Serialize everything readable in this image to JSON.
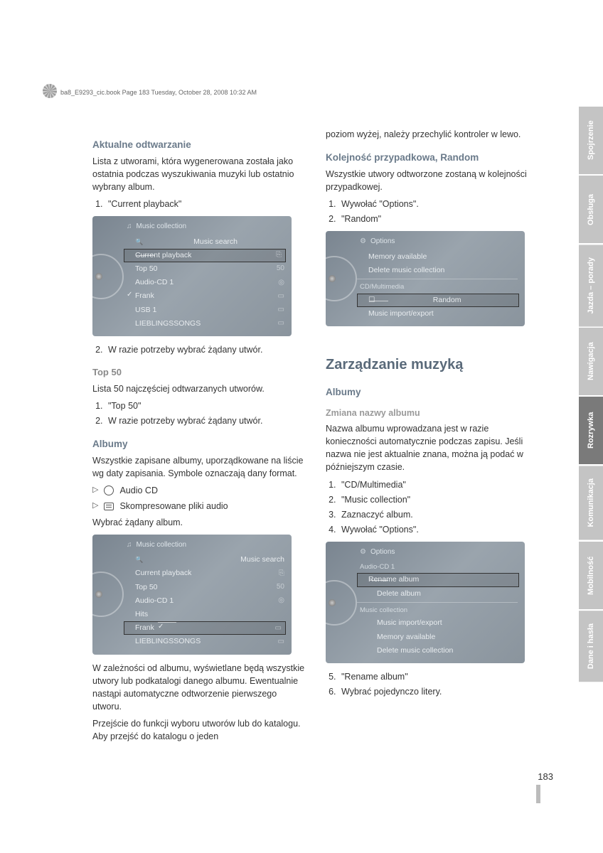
{
  "header": {
    "running_head": "ba8_E9293_cic.book  Page 183  Tuesday, October 28, 2008  10:32 AM"
  },
  "left_column": {
    "sec1": {
      "title": "Aktualne odtwarzanie",
      "body": "Lista z utworami, która wygenerowana została jako ostatnia podczas wyszukiwania muzyki lub ostatnio wybrany album.",
      "step1": "\"Current playback\"",
      "panel": {
        "title": "Music collection",
        "rows": [
          {
            "label": "Music search",
            "icon": ""
          },
          {
            "label": "Current playback",
            "icon": "⎘",
            "highlight": true
          },
          {
            "label": "Top 50",
            "icon": "50"
          },
          {
            "label": "Audio-CD 1",
            "icon": "◎"
          },
          {
            "label": "Frank",
            "icon": "▭",
            "check": true
          },
          {
            "label": "USB 1",
            "icon": "▭"
          },
          {
            "label": "LIEBLINGSSONGS",
            "icon": "▭"
          }
        ]
      },
      "step2": "W razie potrzeby wybrać żądany utwór."
    },
    "sec2": {
      "title": "Top 50",
      "body": "Lista 50 najczęściej odtwarzanych utworów.",
      "step1": "\"Top 50\"",
      "step2": "W razie potrzeby wybrać żądany utwór."
    },
    "sec3": {
      "title": "Albumy",
      "body": "Wszystkie zapisane albumy, uporządkowane na liście wg daty zapisania. Symbole oznaczają dany format.",
      "b1": "Audio CD",
      "b2": "Skompresowane pliki audio",
      "body2": "Wybrać żądany album.",
      "panel": {
        "title": "Music collection",
        "rows": [
          {
            "label": "Music search",
            "icon": ""
          },
          {
            "label": "Current playback",
            "icon": "⎘"
          },
          {
            "label": "Top 50",
            "icon": "50"
          },
          {
            "label": "Audio-CD 1",
            "icon": "◎"
          },
          {
            "label": "Hits",
            "icon": ""
          },
          {
            "label": "Frank",
            "icon": "▭",
            "highlight": true,
            "check": true
          },
          {
            "label": "LIEBLINGSSONGS",
            "icon": "▭"
          }
        ]
      },
      "body3": "W zależności od albumu, wyświetlane będą wszystkie utwory lub podkatalogi danego albumu. Ewentualnie nastąpi automatyczne odtworzenie pierwszego utworu.",
      "body4": "Przejście do funkcji wyboru utworów lub do katalogu. Aby przejść do katalogu o jeden"
    }
  },
  "right_column": {
    "cont": "poziom wyżej, należy przechylić kontroler w lewo.",
    "sec1": {
      "title": "Kolejność przypadkowa, Random",
      "body": "Wszystkie utwory odtworzone zostaną w kolejności przypadkowej.",
      "step1": "Wywołać \"Options\".",
      "step2": "\"Random\"",
      "panel": {
        "title": "Options",
        "rows": [
          {
            "label": "Memory available"
          },
          {
            "label": "Delete music collection"
          }
        ],
        "section": "CD/Multimedia",
        "rows2": [
          {
            "label": "Random",
            "highlight": true,
            "checkbox": true
          },
          {
            "label": "Music import/export"
          }
        ]
      }
    },
    "main_heading": "Zarządzanie muzyką",
    "sec2": {
      "title": "Albumy",
      "sub": "Zmiana nazwy albumu",
      "body": "Nazwa albumu wprowadzana jest w razie konieczności automatycznie podczas zapisu. Jeśli nazwa nie jest aktualnie znana, można ją podać w późniejszym czasie.",
      "step1": "\"CD/Multimedia\"",
      "step2": "\"Music collection\"",
      "step3": "Zaznaczyć album.",
      "step4": "Wywołać \"Options\".",
      "panel": {
        "title": "Options",
        "section1": "Audio-CD 1",
        "rows1": [
          {
            "label": "Rename album",
            "highlight": true
          },
          {
            "label": "Delete album"
          }
        ],
        "section2": "Music collection",
        "rows2": [
          {
            "label": "Music import/export"
          },
          {
            "label": "Memory available"
          },
          {
            "label": "Delete music collection"
          }
        ]
      },
      "step5": "\"Rename album\"",
      "step6": "Wybrać pojedynczo litery."
    }
  },
  "tabs": [
    {
      "label": "Spojrzenie",
      "active": false
    },
    {
      "label": "Obsługa",
      "active": false
    },
    {
      "label": "Jazda – porady",
      "active": false
    },
    {
      "label": "Nawigacja",
      "active": false
    },
    {
      "label": "Rozrywka",
      "active": true
    },
    {
      "label": "Komunikacja",
      "active": false
    },
    {
      "label": "Mobilność",
      "active": false
    },
    {
      "label": "Dane i hasła",
      "active": false
    }
  ],
  "page_number": "183"
}
